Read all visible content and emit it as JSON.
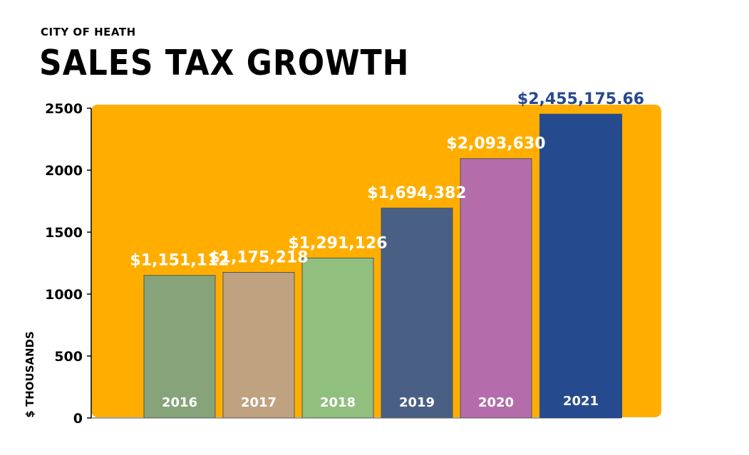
{
  "chart_data": {
    "type": "bar",
    "subtitle": "CITY OF HEATH",
    "title": "SALES TAX GROWTH",
    "ylabel": "$ THOUSANDS",
    "xlabel": "",
    "ylim": [
      0,
      2500
    ],
    "yticks": [
      0,
      500,
      1000,
      1500,
      2000,
      2500
    ],
    "grid": false,
    "background_color": "#FFAE00",
    "categories": [
      "2016",
      "2017",
      "2018",
      "2019",
      "2020",
      "2021"
    ],
    "values": [
      1151.112,
      1175.218,
      1291.126,
      1694.382,
      2093.63,
      2455.17566
    ],
    "data_labels": [
      "$1,151,112",
      "$1,175,218",
      "$1,291,126",
      "$1,694,382",
      "$2,093,630",
      "$2,455,175.66"
    ],
    "bar_colors": [
      "#86A37A",
      "#BFA27F",
      "#90BF7E",
      "#4A5F84",
      "#B46DAA",
      "#264A8E"
    ],
    "data_label_colors": [
      "#FFFFFF",
      "#FFFFFF",
      "#FFFFFF",
      "#FFFFFF",
      "#FFFFFF",
      "#264A8E"
    ]
  }
}
